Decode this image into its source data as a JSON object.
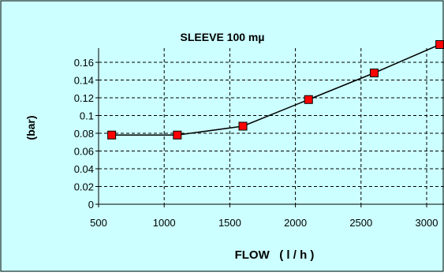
{
  "chart_data": {
    "type": "line",
    "title": "SLEEVE 100 mµ",
    "xlabel": "FLOW   ( l / h )",
    "ylabel": "(bar)",
    "xlim": [
      500,
      3000
    ],
    "ylim": [
      0,
      0.16
    ],
    "x_ticks": [
      "500",
      "1000",
      "1500",
      "2000",
      "2500",
      "3000"
    ],
    "y_ticks": [
      "0",
      "0.02",
      "0.04",
      "0.06",
      "0.08",
      "0.1",
      "0.12",
      "0.14",
      "0.16"
    ],
    "grid": true,
    "legend": false,
    "series": [
      {
        "x": [
          600,
          1100,
          1600,
          2100,
          2600,
          3100
        ],
        "values": [
          0.078,
          0.078,
          0.088,
          0.118,
          0.148,
          0.18
        ],
        "color": "#000000",
        "marker_color": "#ff0000",
        "marker": "square"
      }
    ],
    "background_color": "#ccffff",
    "plot_background_color": "#ccffff"
  }
}
